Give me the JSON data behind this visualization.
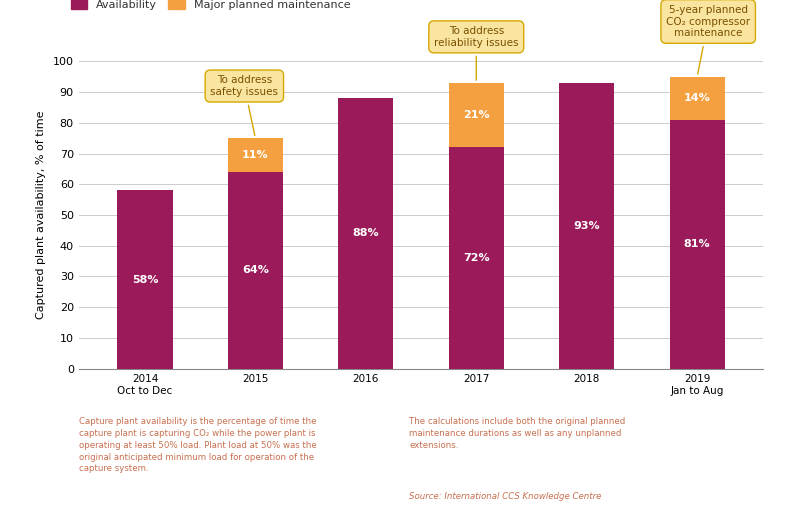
{
  "categories": [
    "2014\nOct to Dec",
    "2015",
    "2016",
    "2017",
    "2018",
    "2019\nJan to Aug"
  ],
  "availability": [
    58,
    64,
    88,
    72,
    93,
    81
  ],
  "maintenance": [
    0,
    11,
    0,
    21,
    0,
    14
  ],
  "availability_color": "#9B1B5A",
  "maintenance_color": "#F5A040",
  "bar_width": 0.5,
  "ylim": [
    0,
    100
  ],
  "ylabel": "Captured plant availability, % of time",
  "yticks": [
    0,
    10,
    20,
    30,
    40,
    50,
    60,
    70,
    80,
    90,
    100
  ],
  "bg_color": "#FFFFFF",
  "grid_color": "#CCCCCC",
  "annot_bg": "#FAE5A0",
  "annot_edge": "#D4A800",
  "footnote_left": "Capture plant availability is the percentage of time the\ncapture plant is capturing CO₂ while the power plant is\noperating at least 50% load. Plant load at 50% was the\noriginal anticipated minimum load for operation of the\ncapture system.",
  "footnote_right": "The calculations include both the original planned\nmaintenance durations as well as any unplanned\nextensions.",
  "source": "Source: International CCS Knowledge Centre",
  "legend_availability": "Availability",
  "legend_maintenance": "Major planned maintenance",
  "footnote_color": "#C87050"
}
